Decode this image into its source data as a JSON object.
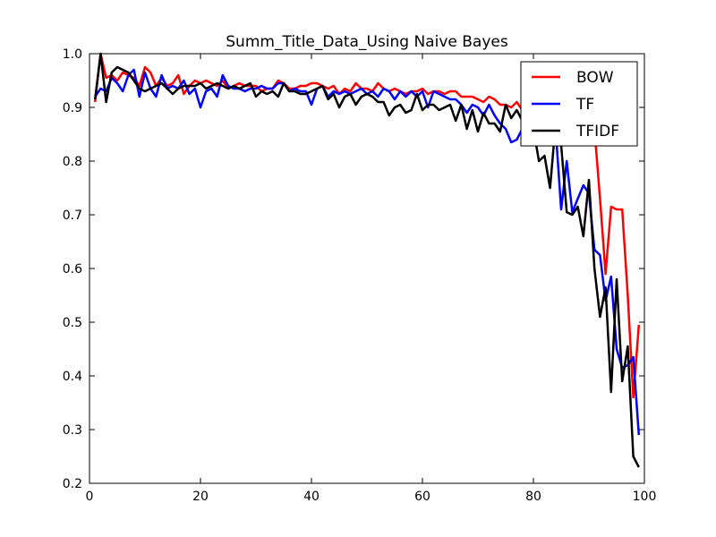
{
  "chart_data": {
    "type": "line",
    "title": "Summ_Title_Data_Using Naive Bayes",
    "xlabel": "",
    "ylabel": "",
    "xlim": [
      0,
      100
    ],
    "ylim": [
      0.2,
      1.0
    ],
    "xticks": [
      "0",
      "20",
      "40",
      "60",
      "80",
      "100"
    ],
    "yticks": [
      "0.2",
      "0.3",
      "0.4",
      "0.5",
      "0.6",
      "0.7",
      "0.8",
      "0.9",
      "1.0"
    ],
    "grid": false,
    "legend_position": "top-right",
    "x": [
      1,
      2,
      3,
      4,
      5,
      6,
      7,
      8,
      9,
      10,
      11,
      12,
      13,
      14,
      15,
      16,
      17,
      18,
      19,
      20,
      21,
      22,
      23,
      24,
      25,
      26,
      27,
      28,
      29,
      30,
      31,
      32,
      33,
      34,
      35,
      36,
      37,
      38,
      39,
      40,
      41,
      42,
      43,
      44,
      45,
      46,
      47,
      48,
      49,
      50,
      51,
      52,
      53,
      54,
      55,
      56,
      57,
      58,
      59,
      60,
      61,
      62,
      63,
      64,
      65,
      66,
      67,
      68,
      69,
      70,
      71,
      72,
      73,
      74,
      75,
      76,
      77,
      78,
      79,
      80,
      81,
      82,
      83,
      84,
      85,
      86,
      87,
      88,
      89,
      90,
      91,
      92,
      93,
      94,
      95,
      96,
      97,
      98,
      99
    ],
    "series": [
      {
        "name": "BOW",
        "color": "#ff0000",
        "values": [
          0.91,
          1.0,
          0.955,
          0.96,
          0.95,
          0.965,
          0.96,
          0.955,
          0.94,
          0.975,
          0.965,
          0.94,
          0.955,
          0.94,
          0.945,
          0.96,
          0.925,
          0.94,
          0.95,
          0.945,
          0.95,
          0.945,
          0.94,
          0.95,
          0.935,
          0.94,
          0.945,
          0.94,
          0.94,
          0.94,
          0.93,
          0.935,
          0.935,
          0.95,
          0.945,
          0.935,
          0.935,
          0.94,
          0.94,
          0.945,
          0.945,
          0.94,
          0.935,
          0.94,
          0.925,
          0.935,
          0.93,
          0.945,
          0.935,
          0.935,
          0.93,
          0.945,
          0.935,
          0.93,
          0.935,
          0.93,
          0.925,
          0.93,
          0.93,
          0.935,
          0.925,
          0.93,
          0.93,
          0.925,
          0.93,
          0.93,
          0.92,
          0.92,
          0.92,
          0.915,
          0.91,
          0.92,
          0.915,
          0.905,
          0.905,
          0.9,
          0.91,
          0.895,
          0.9,
          0.895,
          0.89,
          0.89,
          0.88,
          0.87,
          0.865,
          0.88,
          0.87,
          0.86,
          0.86,
          0.875,
          0.86,
          0.73,
          0.59,
          0.715,
          0.71,
          0.71,
          0.55,
          0.36,
          0.495
        ]
      },
      {
        "name": "TF",
        "color": "#0000ff",
        "values": [
          0.92,
          0.935,
          0.93,
          0.955,
          0.945,
          0.93,
          0.96,
          0.97,
          0.92,
          0.965,
          0.935,
          0.92,
          0.96,
          0.935,
          0.94,
          0.935,
          0.95,
          0.925,
          0.935,
          0.9,
          0.93,
          0.935,
          0.92,
          0.96,
          0.94,
          0.935,
          0.935,
          0.93,
          0.935,
          0.935,
          0.94,
          0.935,
          0.935,
          0.945,
          0.945,
          0.93,
          0.935,
          0.93,
          0.93,
          0.905,
          0.935,
          0.94,
          0.92,
          0.93,
          0.925,
          0.93,
          0.925,
          0.93,
          0.935,
          0.925,
          0.93,
          0.92,
          0.935,
          0.93,
          0.915,
          0.93,
          0.92,
          0.93,
          0.92,
          0.93,
          0.9,
          0.93,
          0.925,
          0.92,
          0.915,
          0.915,
          0.905,
          0.89,
          0.905,
          0.9,
          0.885,
          0.905,
          0.885,
          0.87,
          0.86,
          0.835,
          0.84,
          0.86,
          0.86,
          0.88,
          0.865,
          0.87,
          0.855,
          0.86,
          0.71,
          0.8,
          0.705,
          0.73,
          0.755,
          0.74,
          0.635,
          0.625,
          0.54,
          0.585,
          0.45,
          0.415,
          0.42,
          0.435,
          0.29
        ]
      },
      {
        "name": "TFIDF",
        "color": "#000000",
        "values": [
          0.915,
          1.0,
          0.91,
          0.965,
          0.975,
          0.97,
          0.965,
          0.95,
          0.935,
          0.93,
          0.935,
          0.94,
          0.945,
          0.935,
          0.925,
          0.935,
          0.94,
          0.94,
          0.94,
          0.945,
          0.935,
          0.94,
          0.945,
          0.94,
          0.935,
          0.94,
          0.935,
          0.94,
          0.945,
          0.92,
          0.93,
          0.925,
          0.93,
          0.92,
          0.945,
          0.93,
          0.93,
          0.925,
          0.925,
          0.93,
          0.935,
          0.94,
          0.915,
          0.925,
          0.9,
          0.92,
          0.925,
          0.905,
          0.92,
          0.925,
          0.92,
          0.91,
          0.91,
          0.885,
          0.9,
          0.905,
          0.89,
          0.895,
          0.925,
          0.895,
          0.905,
          0.905,
          0.895,
          0.9,
          0.905,
          0.875,
          0.905,
          0.86,
          0.895,
          0.855,
          0.89,
          0.87,
          0.87,
          0.855,
          0.905,
          0.88,
          0.895,
          0.875,
          0.875,
          0.86,
          0.8,
          0.81,
          0.75,
          0.87,
          0.83,
          0.705,
          0.7,
          0.715,
          0.66,
          0.765,
          0.6,
          0.51,
          0.565,
          0.37,
          0.58,
          0.39,
          0.455,
          0.25,
          0.23
        ]
      }
    ]
  }
}
